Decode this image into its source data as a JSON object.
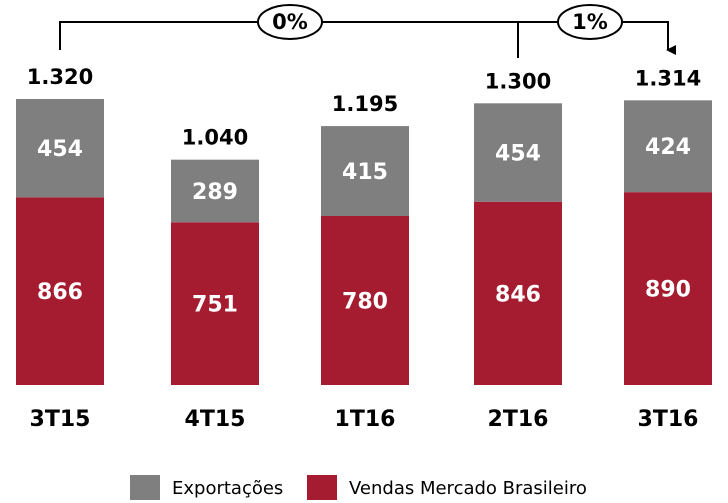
{
  "chart_data": {
    "type": "stacked_bar",
    "categories": [
      "3T15",
      "4T15",
      "1T16",
      "2T16",
      "3T16"
    ],
    "series": [
      {
        "name": "Vendas Mercado Brasileiro",
        "color": "#a51c30",
        "values": [
          866,
          751,
          780,
          846,
          890
        ]
      },
      {
        "name": "Exportações",
        "color": "#7f7f7f",
        "values": [
          454,
          289,
          415,
          454,
          424
        ]
      }
    ],
    "totals": {
      "values": [
        1320,
        1040,
        1195,
        1300,
        1314
      ],
      "value_labels": [
        "1.320",
        "1.040",
        "1.195",
        "1.300",
        "1.314"
      ]
    },
    "annotations": [
      {
        "text": "0%"
      },
      {
        "text": "1%"
      }
    ],
    "legend": "bottom"
  }
}
